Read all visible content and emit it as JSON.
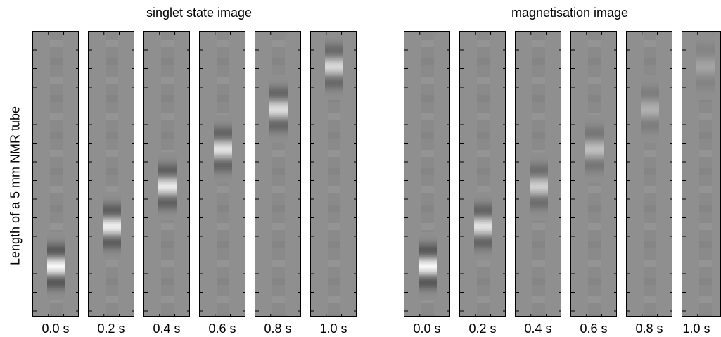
{
  "figure": {
    "ylabel": "Length of a 5 mm NMR tube",
    "groups": [
      {
        "title": "singlet state image",
        "panels": [
          {
            "time": "0.0 s",
            "pulse_position": 0.18,
            "intensity": 1.0
          },
          {
            "time": "0.2 s",
            "pulse_position": 0.32,
            "intensity": 0.92
          },
          {
            "time": "0.4 s",
            "pulse_position": 0.46,
            "intensity": 0.86
          },
          {
            "time": "0.6 s",
            "pulse_position": 0.59,
            "intensity": 0.8
          },
          {
            "time": "0.8 s",
            "pulse_position": 0.73,
            "intensity": 0.75
          },
          {
            "time": "1.0 s",
            "pulse_position": 0.88,
            "intensity": 0.7
          }
        ]
      },
      {
        "title": "magnetisation image",
        "panels": [
          {
            "time": "0.0 s",
            "pulse_position": 0.18,
            "intensity": 1.0
          },
          {
            "time": "0.2 s",
            "pulse_position": 0.32,
            "intensity": 0.8
          },
          {
            "time": "0.4 s",
            "pulse_position": 0.46,
            "intensity": 0.62
          },
          {
            "time": "0.6 s",
            "pulse_position": 0.59,
            "intensity": 0.46
          },
          {
            "time": "0.8 s",
            "pulse_position": 0.73,
            "intensity": 0.32
          },
          {
            "time": "1.0 s",
            "pulse_position": 0.88,
            "intensity": 0.2
          }
        ]
      }
    ],
    "colors": {
      "background_gray": "#8f8f8f",
      "frame": "#000000"
    }
  }
}
